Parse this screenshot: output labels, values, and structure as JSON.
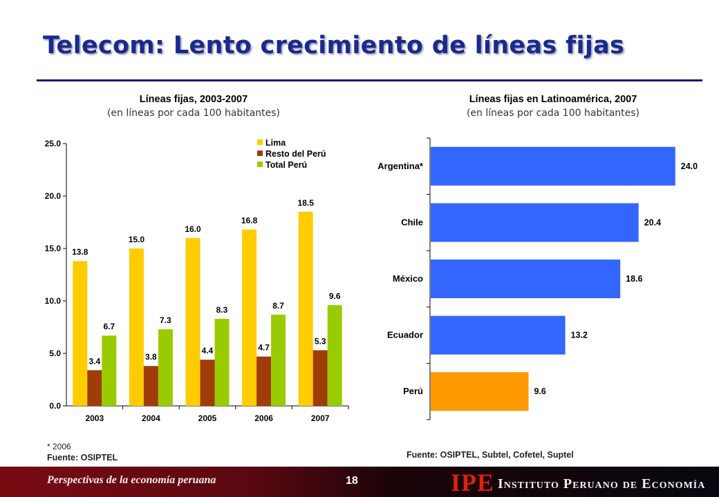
{
  "slide": {
    "title": "Telecom: Lento crecimiento de líneas fijas",
    "footer_left": "Perspectivas de la economía peruana",
    "page_number": "18",
    "logo_abbrev": "IPE",
    "logo_name": "Instituto Peruano de Economía"
  },
  "colors": {
    "title": "#1a2a8c",
    "lima": "#ffcc00",
    "resto": "#a03c08",
    "total": "#99cc00",
    "bar_blue": "#3366ff",
    "bar_peru": "#ff9900",
    "footer_bg": "#5a0810",
    "logo_red": "#e0200c"
  },
  "left_chart": {
    "title": "Líneas fijas, 2003-2007",
    "subtitle": "(en líneas por cada 100 habitantes)",
    "note": "* 2006",
    "source": "Fuente: OSIPTEL"
  },
  "right_chart": {
    "title": "Líneas fijas en Latinoamérica, 2007",
    "subtitle": "(en líneas por cada 100 habitantes)",
    "source": "Fuente: OSIPTEL, Subtel, Cofetel, Suptel"
  },
  "chart_data": [
    {
      "type": "bar",
      "title": "Líneas fijas, 2003-2007",
      "subtitle": "(en líneas por cada 100 habitantes)",
      "categories": [
        "2003",
        "2004",
        "2005",
        "2006",
        "2007"
      ],
      "series": [
        {
          "name": "Lima",
          "values": [
            13.8,
            15.0,
            16.0,
            16.8,
            18.5
          ]
        },
        {
          "name": "Resto del Perú",
          "values": [
            3.4,
            3.8,
            4.4,
            4.7,
            5.3
          ]
        },
        {
          "name": "Total Perú",
          "values": [
            6.7,
            7.3,
            8.3,
            8.7,
            9.6
          ]
        }
      ],
      "yticks": [
        "0.0",
        "5.0",
        "10.0",
        "15.0",
        "20.0",
        "25.0"
      ],
      "ylim": [
        0,
        25
      ],
      "legend": "top-right",
      "grid": false
    },
    {
      "type": "bar",
      "orientation": "horizontal",
      "title": "Líneas fijas en Latinoamérica, 2007",
      "subtitle": "(en líneas por cada 100 habitantes)",
      "categories": [
        "Argentina*",
        "Chile",
        "México",
        "Ecuador",
        "Perú"
      ],
      "values": [
        24.0,
        20.4,
        18.6,
        13.2,
        9.6
      ],
      "value_labels": [
        "24.0",
        "20.4",
        "18.6",
        "13.2",
        "9.6"
      ],
      "xlim": [
        0,
        27
      ],
      "grid": false
    }
  ]
}
